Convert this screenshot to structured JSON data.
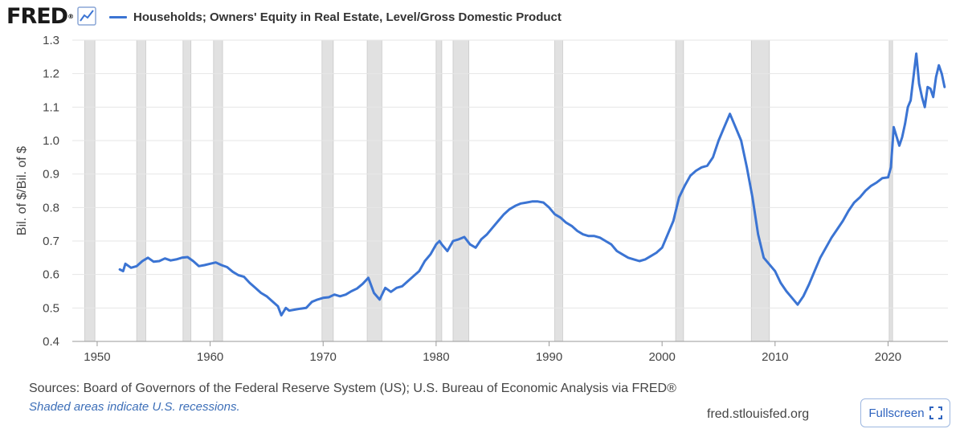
{
  "header": {
    "logo_text": "FRED",
    "logo_mark": "®",
    "logo_icon": "line-graph-icon",
    "series_title": "Households; Owners' Equity in Real Estate, Level/Gross Domestic Product"
  },
  "footer": {
    "sources": "Sources: Board of Governors of the Federal Reserve System (US); U.S. Bureau of Economic Analysis via FRED®",
    "note": "Shaded areas indicate U.S. recessions.",
    "site": "fred.stlouisfed.org",
    "fullscreen_label": "Fullscreen",
    "fullscreen_icon": "expand-icon"
  },
  "colors": {
    "series": "#3b74d3",
    "recession": "#e1e1e1",
    "grid": "#e6e6e6",
    "accent": "#2f64bf"
  },
  "chart_data": {
    "type": "line",
    "title": "Households; Owners' Equity in Real Estate, Level/Gross Domestic Product",
    "xlabel": "",
    "ylabel": "Bil. of $/Bil. of $",
    "xlim": [
      1947.8,
      2025.3
    ],
    "ylim": [
      0.4,
      1.3
    ],
    "x_ticks": [
      1950,
      1960,
      1970,
      1980,
      1990,
      2000,
      2010,
      2020
    ],
    "y_ticks": [
      0.4,
      0.5,
      0.6,
      0.7,
      0.8,
      0.9,
      1.0,
      1.1,
      1.2,
      1.3
    ],
    "grid": "horizontal",
    "legend": "top",
    "recessions": [
      [
        1948.9,
        1949.8
      ],
      [
        1953.5,
        1954.3
      ],
      [
        1957.6,
        1958.3
      ],
      [
        1960.3,
        1961.1
      ],
      [
        1969.9,
        1970.9
      ],
      [
        1973.9,
        1975.2
      ],
      [
        1980.0,
        1980.5
      ],
      [
        1981.5,
        1982.9
      ],
      [
        1990.5,
        1991.2
      ],
      [
        2001.2,
        2001.9
      ],
      [
        2007.9,
        2009.5
      ],
      [
        2020.1,
        2020.4
      ]
    ],
    "series": [
      {
        "name": "Households; Owners' Equity in Real Estate, Level/Gross Domestic Product",
        "x": [
          1952.0,
          1952.3,
          1952.5,
          1953.0,
          1953.5,
          1954.0,
          1954.5,
          1955.0,
          1955.5,
          1956.0,
          1956.5,
          1957.0,
          1957.5,
          1958.0,
          1958.5,
          1959.0,
          1959.5,
          1960.0,
          1960.5,
          1961.0,
          1961.5,
          1962.0,
          1962.5,
          1963.0,
          1963.5,
          1964.0,
          1964.5,
          1965.0,
          1965.5,
          1966.0,
          1966.3,
          1966.7,
          1967.0,
          1967.5,
          1968.0,
          1968.5,
          1969.0,
          1969.5,
          1970.0,
          1970.5,
          1971.0,
          1971.5,
          1972.0,
          1972.5,
          1973.0,
          1973.5,
          1974.0,
          1974.5,
          1975.0,
          1975.5,
          1976.0,
          1976.5,
          1977.0,
          1977.5,
          1978.0,
          1978.5,
          1979.0,
          1979.5,
          1980.0,
          1980.3,
          1980.5,
          1981.0,
          1981.5,
          1982.0,
          1982.5,
          1983.0,
          1983.5,
          1984.0,
          1984.5,
          1985.0,
          1985.5,
          1986.0,
          1986.5,
          1987.0,
          1987.5,
          1988.0,
          1988.5,
          1989.0,
          1989.5,
          1990.0,
          1990.5,
          1991.0,
          1991.5,
          1992.0,
          1992.5,
          1993.0,
          1993.5,
          1994.0,
          1994.5,
          1995.0,
          1995.5,
          1996.0,
          1996.5,
          1997.0,
          1997.5,
          1998.0,
          1998.5,
          1999.0,
          1999.5,
          2000.0,
          2000.5,
          2001.0,
          2001.5,
          2002.0,
          2002.5,
          2003.0,
          2003.5,
          2004.0,
          2004.5,
          2005.0,
          2005.5,
          2006.0,
          2006.5,
          2007.0,
          2007.5,
          2008.0,
          2008.5,
          2009.0,
          2009.5,
          2010.0,
          2010.5,
          2011.0,
          2011.5,
          2012.0,
          2012.5,
          2013.0,
          2013.5,
          2014.0,
          2014.5,
          2015.0,
          2015.5,
          2016.0,
          2016.5,
          2017.0,
          2017.5,
          2018.0,
          2018.5,
          2019.0,
          2019.5,
          2020.0,
          2020.25,
          2020.5,
          2021.0,
          2021.25,
          2021.5,
          2021.75,
          2022.0,
          2022.25,
          2022.5,
          2022.75,
          2023.0,
          2023.25,
          2023.5,
          2023.75,
          2024.0,
          2024.25,
          2024.5,
          2024.75,
          2025.0
        ],
        "values": [
          0.615,
          0.61,
          0.632,
          0.62,
          0.625,
          0.64,
          0.65,
          0.638,
          0.64,
          0.648,
          0.642,
          0.645,
          0.65,
          0.652,
          0.64,
          0.625,
          0.628,
          0.632,
          0.636,
          0.628,
          0.622,
          0.608,
          0.598,
          0.593,
          0.575,
          0.56,
          0.545,
          0.535,
          0.52,
          0.505,
          0.478,
          0.5,
          0.492,
          0.495,
          0.498,
          0.5,
          0.518,
          0.525,
          0.53,
          0.532,
          0.54,
          0.535,
          0.54,
          0.55,
          0.558,
          0.572,
          0.59,
          0.545,
          0.525,
          0.56,
          0.548,
          0.56,
          0.565,
          0.58,
          0.595,
          0.61,
          0.64,
          0.66,
          0.69,
          0.7,
          0.69,
          0.67,
          0.7,
          0.705,
          0.712,
          0.69,
          0.68,
          0.705,
          0.72,
          0.74,
          0.76,
          0.78,
          0.795,
          0.805,
          0.812,
          0.815,
          0.818,
          0.818,
          0.815,
          0.8,
          0.78,
          0.77,
          0.755,
          0.745,
          0.73,
          0.72,
          0.715,
          0.715,
          0.71,
          0.7,
          0.69,
          0.67,
          0.66,
          0.65,
          0.645,
          0.64,
          0.645,
          0.655,
          0.665,
          0.68,
          0.72,
          0.76,
          0.83,
          0.865,
          0.895,
          0.91,
          0.92,
          0.925,
          0.95,
          1.0,
          1.04,
          1.08,
          1.04,
          1.0,
          0.92,
          0.83,
          0.72,
          0.65,
          0.63,
          0.61,
          0.575,
          0.55,
          0.53,
          0.51,
          0.535,
          0.57,
          0.61,
          0.65,
          0.68,
          0.71,
          0.735,
          0.76,
          0.79,
          0.815,
          0.83,
          0.85,
          0.865,
          0.875,
          0.888,
          0.89,
          0.92,
          1.04,
          0.985,
          1.01,
          1.05,
          1.1,
          1.12,
          1.19,
          1.26,
          1.17,
          1.13,
          1.1,
          1.16,
          1.155,
          1.13,
          1.19,
          1.225,
          1.2,
          1.16
        ]
      }
    ]
  }
}
